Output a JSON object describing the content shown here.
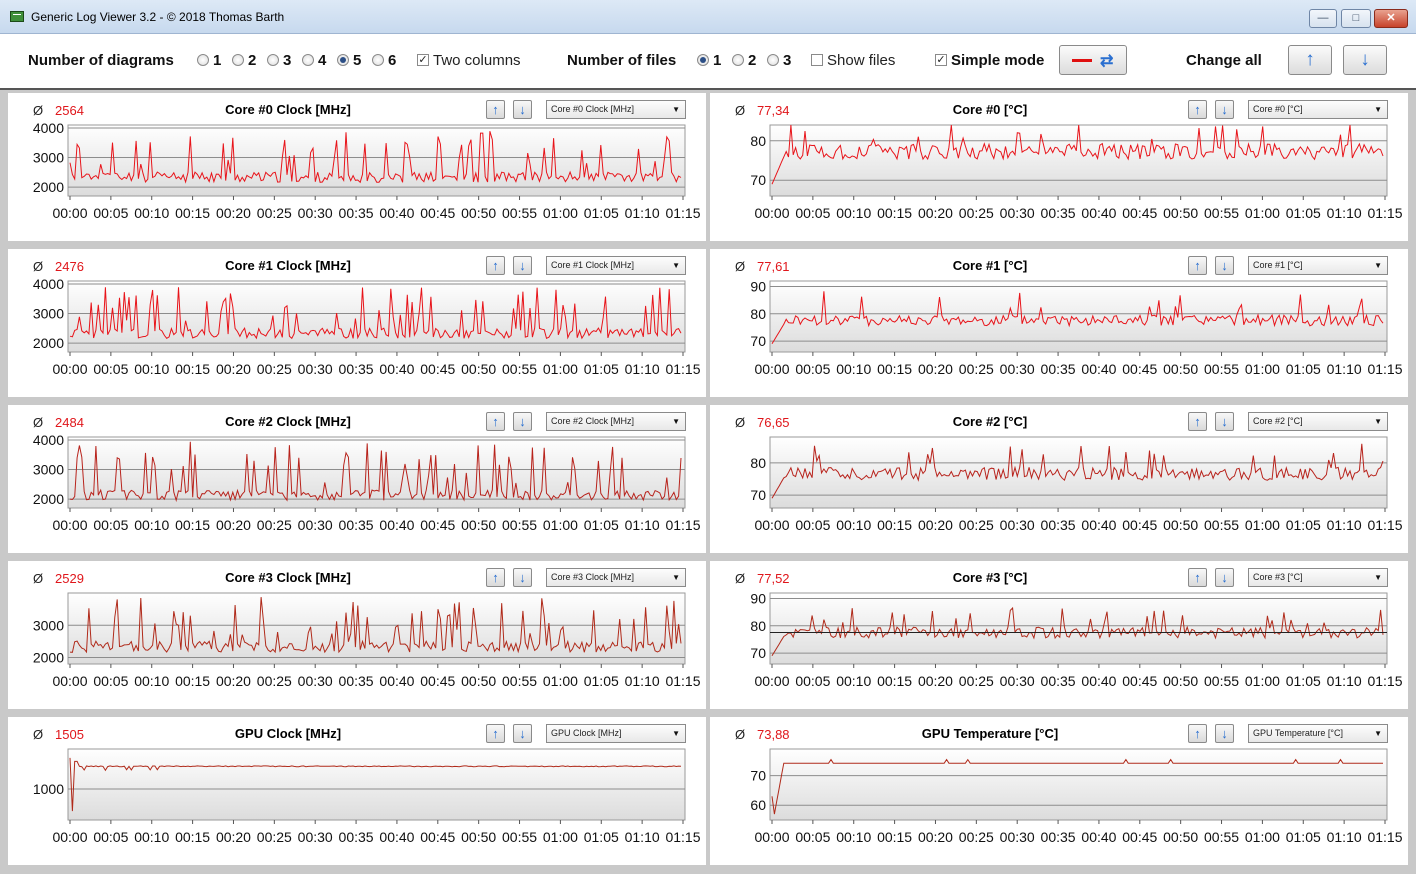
{
  "window": {
    "title": "Generic Log Viewer 3.2 - © 2018 Thomas Barth",
    "minimize": "—",
    "maximize": "□",
    "close": "✕"
  },
  "toolbar": {
    "diagrams_label": "Number of diagrams",
    "diagram_options": [
      "1",
      "2",
      "3",
      "4",
      "5",
      "6"
    ],
    "diagrams_selected": "5",
    "two_columns_label": "Two columns",
    "two_columns_checked": true,
    "files_label": "Number of files",
    "file_options": [
      "1",
      "2",
      "3"
    ],
    "files_selected": "1",
    "show_files_label": "Show files",
    "show_files_checked": false,
    "simple_mode_label": "Simple mode",
    "simple_mode_checked": true,
    "change_all_label": "Change all",
    "line_color": "#e01010",
    "icons": [
      "swap-icon",
      "arrow-up-icon",
      "arrow-down-icon"
    ]
  },
  "x_ticks": [
    "00:00",
    "00:05",
    "00:10",
    "00:15",
    "00:20",
    "00:25",
    "00:30",
    "00:35",
    "00:40",
    "00:45",
    "00:50",
    "00:55",
    "01:00",
    "01:05",
    "01:10",
    "01:15"
  ],
  "panels": [
    {
      "avg_symbol": "Ø",
      "avg": "2564",
      "title": "Core #0 Clock [MHz]",
      "select": "Core #0 Clock [MHz]",
      "line_color": "#e8141a",
      "chart_data": {
        "type": "line",
        "y_ticks": [
          2000,
          3000,
          4000
        ],
        "ylim": [
          1700,
          4100
        ],
        "baseline": 2300,
        "max": 3900,
        "noise": "spiky",
        "seed": 11
      }
    },
    {
      "avg_symbol": "Ø",
      "avg": "77,34",
      "title": "Core #0 [°C]",
      "select": "Core #0 [°C]",
      "line_color": "#e8141a",
      "chart_data": {
        "type": "line",
        "y_ticks": [
          70,
          80
        ],
        "ylim": [
          66,
          84
        ],
        "baseline": 77.3,
        "max": 85,
        "noise": "temp",
        "seed": 21
      }
    },
    {
      "avg_symbol": "Ø",
      "avg": "2476",
      "title": "Core #1 Clock [MHz]",
      "select": "Core #1 Clock [MHz]",
      "line_color": "#e8141a",
      "chart_data": {
        "type": "line",
        "y_ticks": [
          2000,
          3000,
          4000
        ],
        "ylim": [
          1700,
          4100
        ],
        "baseline": 2300,
        "max": 3950,
        "noise": "spiky",
        "seed": 31
      }
    },
    {
      "avg_symbol": "Ø",
      "avg": "77,61",
      "title": "Core #1 [°C]",
      "select": "Core #1 [°C]",
      "line_color": "#e8141a",
      "chart_data": {
        "type": "line",
        "y_ticks": [
          70,
          80,
          90
        ],
        "ylim": [
          66,
          92
        ],
        "baseline": 77.6,
        "max": 89,
        "noise": "temp",
        "seed": 41
      }
    },
    {
      "avg_symbol": "Ø",
      "avg": "2484",
      "title": "Core #2 Clock [MHz]",
      "select": "Core #2 Clock [MHz]",
      "line_color": "#b8231c",
      "chart_data": {
        "type": "line",
        "y_ticks": [
          2000,
          3000,
          4000
        ],
        "ylim": [
          1700,
          4100
        ],
        "baseline": 2100,
        "max": 3950,
        "noise": "spiky",
        "seed": 51
      }
    },
    {
      "avg_symbol": "Ø",
      "avg": "76,65",
      "title": "Core #2 [°C]",
      "select": "Core #2 [°C]",
      "line_color": "#b8231c",
      "chart_data": {
        "type": "line",
        "y_ticks": [
          70,
          80
        ],
        "ylim": [
          66,
          88
        ],
        "baseline": 76.6,
        "max": 86,
        "noise": "temp",
        "seed": 61
      }
    },
    {
      "avg_symbol": "Ø",
      "avg": "2529",
      "title": "Core #3 Clock [MHz]",
      "select": "Core #3 Clock [MHz]",
      "line_color": "#b02a1a",
      "chart_data": {
        "type": "line",
        "y_ticks": [
          2000,
          3000
        ],
        "ylim": [
          1800,
          4000
        ],
        "baseline": 2300,
        "max": 3900,
        "noise": "spiky",
        "seed": 71
      }
    },
    {
      "avg_symbol": "Ø",
      "avg": "77,52",
      "title": "Core #3 [°C]",
      "select": "Core #3 [°C]",
      "line_color": "#b02a1a",
      "chart_data": {
        "type": "line",
        "y_ticks": [
          70,
          80,
          90
        ],
        "ylim": [
          66,
          92
        ],
        "baseline": 77.5,
        "max": 87,
        "noise": "temp",
        "seed": 81,
        "avg_line": 77.52
      }
    },
    {
      "avg_symbol": "Ø",
      "avg": "1505",
      "title": "GPU Clock [MHz]",
      "select": "GPU Clock [MHz]",
      "line_color": "#b02a1a",
      "chart_data": {
        "type": "line",
        "y_ticks": [
          1000
        ],
        "ylim": [
          300,
          1900
        ],
        "baseline": 1510,
        "max": 1560,
        "noise": "gpu",
        "seed": 91,
        "start": 1700,
        "dip": 500
      }
    },
    {
      "avg_symbol": "Ø",
      "avg": "73,88",
      "title": "GPU Temperature [°C]",
      "select": "GPU Temperature [°C]",
      "line_color": "#b02a1a",
      "chart_data": {
        "type": "line",
        "y_ticks": [
          60,
          70
        ],
        "ylim": [
          55,
          79
        ],
        "baseline": 74.2,
        "max": 75,
        "noise": "gputemp",
        "seed": 101,
        "start": 63,
        "dip": 57
      }
    }
  ]
}
